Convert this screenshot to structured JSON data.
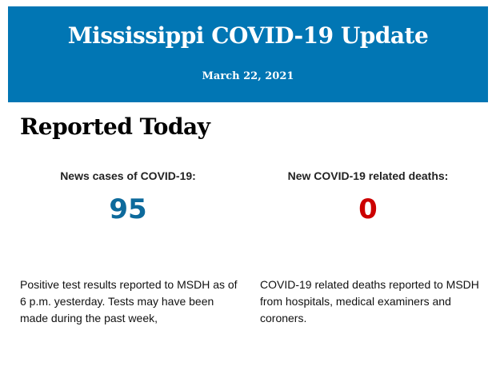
{
  "header": {
    "title": "Mississippi COVID-19 Update",
    "date": "March 22, 2021"
  },
  "section": {
    "title": "Reported Today"
  },
  "cases": {
    "label": "News cases of COVID-19:",
    "value": "95",
    "description": "Positive test results reported to MSDH as of 6 p.m. yesterday. Tests may have been made during the past week,",
    "color": "#0d6a9c"
  },
  "deaths": {
    "label": "New COVID-19 related deaths:",
    "value": "0",
    "description": "COVID-19 related deaths reported to MSDH from hospitals, medical examiners and coroners.",
    "color": "#cc0000"
  },
  "colors": {
    "banner": "#0176b4"
  }
}
